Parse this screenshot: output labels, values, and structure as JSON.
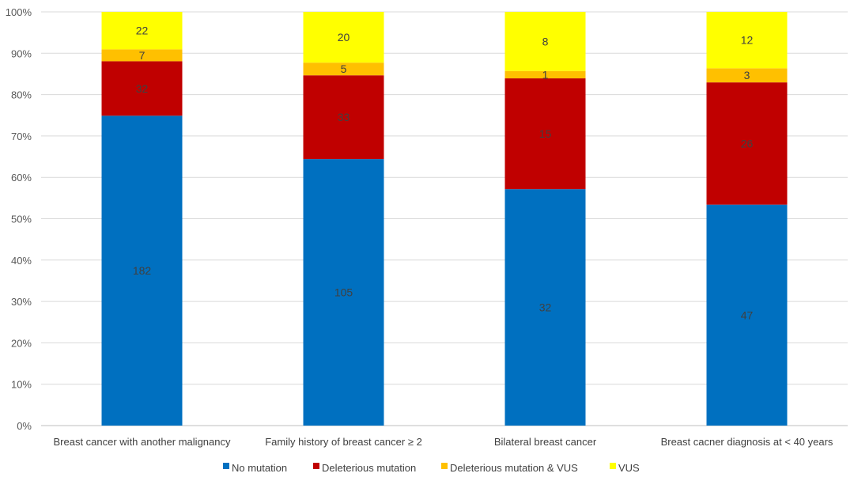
{
  "chart_data": {
    "type": "bar",
    "stacked": "percent",
    "title": "",
    "xlabel": "",
    "ylabel": "",
    "ylim": [
      0,
      100
    ],
    "y_ticks": [
      "0%",
      "10%",
      "20%",
      "30%",
      "40%",
      "50%",
      "60%",
      "70%",
      "80%",
      "90%",
      "100%"
    ],
    "grid": true,
    "legend_position": "bottom",
    "categories": [
      "Breast cancer with another malignancy",
      "Family history of breast cancer ≥ 2",
      "Bilateral breast cancer",
      "Breast cacner diagnosis at < 40 years"
    ],
    "series": [
      {
        "name": "No mutation",
        "color": "#0070c0",
        "values": [
          182,
          105,
          32,
          47
        ]
      },
      {
        "name": "Deleterious mutation",
        "color": "#c00000",
        "values": [
          32,
          33,
          15,
          26
        ]
      },
      {
        "name": "Deleterious mutation & VUS",
        "color": "#ffc000",
        "values": [
          7,
          5,
          1,
          3
        ]
      },
      {
        "name": "VUS",
        "color": "#ffff00",
        "values": [
          22,
          20,
          8,
          12
        ]
      }
    ]
  }
}
